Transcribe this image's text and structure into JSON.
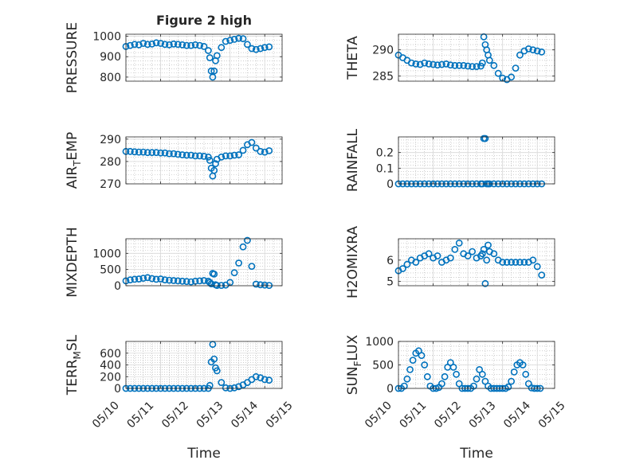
{
  "figure_title": "Figure 2 high",
  "colors": {
    "marker": "#0072BD",
    "axis": "#262626",
    "grid": "#b0b0b0"
  },
  "chart_data": [
    {
      "type": "scatter",
      "ylabel": "PRESSURE",
      "ylim": [
        780,
        1010
      ],
      "yticks": [
        800,
        900,
        1000
      ],
      "ytick_labels": [
        "800",
        "900",
        "1000"
      ],
      "xlim": [
        "2017-05-10",
        "2017-05-14.5"
      ],
      "xticks": [
        "2017-05-10",
        "2017-05-11",
        "2017-05-12",
        "2017-05-13",
        "2017-05-14"
      ],
      "xtick_labels": [],
      "grid": true,
      "x": [
        "2017-05-10T00",
        "2017-05-10T03",
        "2017-05-10T06",
        "2017-05-10T09",
        "2017-05-10T12",
        "2017-05-10T15",
        "2017-05-10T18",
        "2017-05-10T21",
        "2017-05-11T00",
        "2017-05-11T03",
        "2017-05-11T06",
        "2017-05-11T09",
        "2017-05-11T12",
        "2017-05-11T15",
        "2017-05-11T18",
        "2017-05-11T21",
        "2017-05-12T00",
        "2017-05-12T03",
        "2017-05-12T06",
        "2017-05-12T09",
        "2017-05-12T10",
        "2017-05-12T11",
        "2017-05-12T12",
        "2017-05-12T13",
        "2017-05-12T14",
        "2017-05-12T15",
        "2017-05-12T18",
        "2017-05-12T21",
        "2017-05-13T00",
        "2017-05-13T03",
        "2017-05-13T06",
        "2017-05-13T09",
        "2017-05-13T12",
        "2017-05-13T15",
        "2017-05-13T18",
        "2017-05-13T21",
        "2017-05-14T00",
        "2017-05-14T03"
      ],
      "y": [
        950,
        955,
        960,
        958,
        965,
        960,
        962,
        968,
        965,
        960,
        958,
        962,
        960,
        958,
        955,
        955,
        958,
        955,
        950,
        930,
        895,
        830,
        800,
        830,
        880,
        905,
        945,
        975,
        980,
        985,
        990,
        988,
        960,
        940,
        935,
        940,
        945,
        948
      ]
    },
    {
      "type": "scatter",
      "ylabel": "THETA",
      "ylim": [
        284,
        293
      ],
      "yticks": [
        285,
        290
      ],
      "ytick_labels": [
        "285",
        "290"
      ],
      "xlim": [
        "2017-05-10",
        "2017-05-14.5"
      ],
      "xticks": [
        "2017-05-10",
        "2017-05-11",
        "2017-05-12",
        "2017-05-13",
        "2017-05-14"
      ],
      "xtick_labels": [],
      "grid": true,
      "x": [
        "2017-05-10T00",
        "2017-05-10T03",
        "2017-05-10T06",
        "2017-05-10T09",
        "2017-05-10T12",
        "2017-05-10T15",
        "2017-05-10T18",
        "2017-05-10T21",
        "2017-05-11T00",
        "2017-05-11T03",
        "2017-05-11T06",
        "2017-05-11T09",
        "2017-05-11T12",
        "2017-05-11T15",
        "2017-05-11T18",
        "2017-05-11T21",
        "2017-05-12T00",
        "2017-05-12T03",
        "2017-05-12T06",
        "2017-05-12T09",
        "2017-05-12T10",
        "2017-05-12T11",
        "2017-05-12T12",
        "2017-05-12T13",
        "2017-05-12T14",
        "2017-05-12T15",
        "2017-05-12T18",
        "2017-05-12T21",
        "2017-05-13T00",
        "2017-05-13T03",
        "2017-05-13T06",
        "2017-05-13T09",
        "2017-05-13T12",
        "2017-05-13T15",
        "2017-05-13T18",
        "2017-05-13T21",
        "2017-05-14T00",
        "2017-05-14T03"
      ],
      "y": [
        289,
        288.5,
        288,
        287.5,
        287.3,
        287.2,
        287.5,
        287.3,
        287.2,
        287.1,
        287.2,
        287.3,
        287.1,
        287,
        287,
        287,
        286.9,
        286.8,
        286.8,
        286.9,
        287.5,
        292.5,
        291,
        290,
        289,
        288,
        287,
        285.5,
        284.6,
        284.3,
        284.8,
        286.5,
        289,
        289.8,
        290.2,
        290,
        289.8,
        289.6
      ]
    },
    {
      "type": "scatter",
      "ylabel": "AIR_TEMP",
      "ylabel_base": "AIR",
      "ylabel_sub": "T",
      "ylabel_rest": "EMP",
      "ylim": [
        270,
        291
      ],
      "yticks": [
        270,
        280,
        290
      ],
      "ytick_labels": [
        "270",
        "280",
        "290"
      ],
      "xlim": [
        "2017-05-10",
        "2017-05-14.5"
      ],
      "xticks": [
        "2017-05-10",
        "2017-05-11",
        "2017-05-12",
        "2017-05-13",
        "2017-05-14"
      ],
      "xtick_labels": [],
      "grid": true,
      "x": [
        "2017-05-10T00",
        "2017-05-10T03",
        "2017-05-10T06",
        "2017-05-10T09",
        "2017-05-10T12",
        "2017-05-10T15",
        "2017-05-10T18",
        "2017-05-10T21",
        "2017-05-11T00",
        "2017-05-11T03",
        "2017-05-11T06",
        "2017-05-11T09",
        "2017-05-11T12",
        "2017-05-11T15",
        "2017-05-11T18",
        "2017-05-11T21",
        "2017-05-12T00",
        "2017-05-12T03",
        "2017-05-12T06",
        "2017-05-12T09",
        "2017-05-12T10",
        "2017-05-12T11",
        "2017-05-12T12",
        "2017-05-12T13",
        "2017-05-12T14",
        "2017-05-12T15",
        "2017-05-12T18",
        "2017-05-12T21",
        "2017-05-13T00",
        "2017-05-13T03",
        "2017-05-13T06",
        "2017-05-13T09",
        "2017-05-13T12",
        "2017-05-13T15",
        "2017-05-13T18",
        "2017-05-13T21",
        "2017-05-14T00",
        "2017-05-14T03"
      ],
      "y": [
        284.5,
        284.5,
        284.3,
        284.2,
        284.2,
        284,
        284,
        284,
        283.8,
        283.8,
        283.5,
        283.5,
        283.2,
        283,
        282.8,
        282.8,
        282.5,
        282.5,
        282.3,
        282,
        280.5,
        277,
        273.5,
        276,
        279,
        281,
        282,
        282.5,
        282.5,
        282.8,
        283,
        285,
        287.5,
        288.5,
        286,
        284.5,
        284.2,
        284.8
      ]
    },
    {
      "type": "scatter",
      "ylabel": "RAINFALL",
      "ylim": [
        0,
        0.3
      ],
      "yticks": [
        0,
        0.1,
        0.2
      ],
      "ytick_labels": [
        "0",
        "0.1",
        "0.2"
      ],
      "xlim": [
        "2017-05-10",
        "2017-05-14.5"
      ],
      "xticks": [
        "2017-05-10",
        "2017-05-11",
        "2017-05-12",
        "2017-05-13",
        "2017-05-14"
      ],
      "xtick_labels": [],
      "grid": true,
      "x": [
        "2017-05-10T00",
        "2017-05-10T03",
        "2017-05-10T06",
        "2017-05-10T09",
        "2017-05-10T12",
        "2017-05-10T15",
        "2017-05-10T18",
        "2017-05-10T21",
        "2017-05-11T00",
        "2017-05-11T03",
        "2017-05-11T06",
        "2017-05-11T09",
        "2017-05-11T12",
        "2017-05-11T15",
        "2017-05-11T18",
        "2017-05-11T21",
        "2017-05-12T00",
        "2017-05-12T03",
        "2017-05-12T06",
        "2017-05-12T09",
        "2017-05-12T10",
        "2017-05-12T11",
        "2017-05-12T12",
        "2017-05-12T13",
        "2017-05-12T14",
        "2017-05-12T15",
        "2017-05-12T18",
        "2017-05-12T21",
        "2017-05-13T00",
        "2017-05-13T03",
        "2017-05-13T06",
        "2017-05-13T09",
        "2017-05-13T12",
        "2017-05-13T15",
        "2017-05-13T18",
        "2017-05-13T21",
        "2017-05-14T00",
        "2017-05-14T03"
      ],
      "y": [
        0,
        0,
        0,
        0,
        0,
        0,
        0,
        0,
        0,
        0,
        0,
        0,
        0,
        0,
        0,
        0,
        0,
        0,
        0,
        0,
        0,
        0.29,
        0.29,
        0,
        0,
        0,
        0,
        0,
        0,
        0,
        0,
        0,
        0,
        0,
        0,
        0,
        0,
        0
      ]
    },
    {
      "type": "scatter",
      "ylabel": "MIXDEPTH",
      "ylim": [
        0,
        1450
      ],
      "yticks": [
        0,
        500,
        1000
      ],
      "ytick_labels": [
        "0",
        "500",
        "1000"
      ],
      "xlim": [
        "2017-05-10",
        "2017-05-14.5"
      ],
      "xticks": [
        "2017-05-10",
        "2017-05-11",
        "2017-05-12",
        "2017-05-13",
        "2017-05-14"
      ],
      "xtick_labels": [],
      "grid": true,
      "x": [
        "2017-05-10T00",
        "2017-05-10T03",
        "2017-05-10T06",
        "2017-05-10T09",
        "2017-05-10T12",
        "2017-05-10T15",
        "2017-05-10T18",
        "2017-05-10T21",
        "2017-05-11T00",
        "2017-05-11T03",
        "2017-05-11T06",
        "2017-05-11T09",
        "2017-05-11T12",
        "2017-05-11T15",
        "2017-05-11T18",
        "2017-05-11T21",
        "2017-05-12T00",
        "2017-05-12T03",
        "2017-05-12T06",
        "2017-05-12T09",
        "2017-05-12T10",
        "2017-05-12T11",
        "2017-05-12T12",
        "2017-05-12T13",
        "2017-05-12T14",
        "2017-05-12T15",
        "2017-05-12T18",
        "2017-05-12T21",
        "2017-05-13T00",
        "2017-05-13T03",
        "2017-05-13T06",
        "2017-05-13T09",
        "2017-05-13T12",
        "2017-05-13T15",
        "2017-05-13T18",
        "2017-05-13T21",
        "2017-05-14T00",
        "2017-05-14T03"
      ],
      "y": [
        150,
        180,
        200,
        210,
        230,
        250,
        220,
        200,
        210,
        180,
        170,
        160,
        150,
        140,
        130,
        120,
        140,
        150,
        160,
        140,
        100,
        60,
        380,
        360,
        30,
        10,
        10,
        20,
        100,
        400,
        700,
        1200,
        1400,
        600,
        50,
        30,
        20,
        10
      ]
    },
    {
      "type": "scatter",
      "ylabel": "H2OMIXRA",
      "ylim": [
        4.8,
        7
      ],
      "yticks": [
        5,
        6
      ],
      "ytick_labels": [
        "5",
        "6"
      ],
      "xlim": [
        "2017-05-10",
        "2017-05-14.5"
      ],
      "xticks": [
        "2017-05-10",
        "2017-05-11",
        "2017-05-12",
        "2017-05-13",
        "2017-05-14"
      ],
      "xtick_labels": [],
      "grid": true,
      "x": [
        "2017-05-10T00",
        "2017-05-10T03",
        "2017-05-10T06",
        "2017-05-10T09",
        "2017-05-10T12",
        "2017-05-10T15",
        "2017-05-10T18",
        "2017-05-10T21",
        "2017-05-11T00",
        "2017-05-11T03",
        "2017-05-11T06",
        "2017-05-11T09",
        "2017-05-11T12",
        "2017-05-11T15",
        "2017-05-11T18",
        "2017-05-11T21",
        "2017-05-12T00",
        "2017-05-12T03",
        "2017-05-12T06",
        "2017-05-12T09",
        "2017-05-12T10",
        "2017-05-12T11",
        "2017-05-12T12",
        "2017-05-12T13",
        "2017-05-12T14",
        "2017-05-12T15",
        "2017-05-12T18",
        "2017-05-12T21",
        "2017-05-13T00",
        "2017-05-13T03",
        "2017-05-13T06",
        "2017-05-13T09",
        "2017-05-13T12",
        "2017-05-13T15",
        "2017-05-13T18",
        "2017-05-13T21",
        "2017-05-14T00",
        "2017-05-14T03"
      ],
      "y": [
        5.5,
        5.6,
        5.8,
        6,
        5.9,
        6.1,
        6.2,
        6.3,
        6.1,
        6.2,
        5.9,
        6,
        6.1,
        6.5,
        6.8,
        6.3,
        6.2,
        6.4,
        6.1,
        6.2,
        6.3,
        6.5,
        4.9,
        6,
        6.7,
        6.4,
        6.3,
        6,
        5.9,
        5.9,
        5.9,
        5.9,
        5.9,
        5.9,
        5.9,
        6,
        5.7,
        5.3
      ]
    },
    {
      "type": "scatter",
      "ylabel": "TERR_MSL",
      "ylabel_base": "TERR",
      "ylabel_sub": "M",
      "ylabel_rest": "SL",
      "ylim": [
        0,
        800
      ],
      "yticks": [
        0,
        200,
        400,
        600
      ],
      "ytick_labels": [
        "0",
        "200",
        "400",
        "600"
      ],
      "xlim": [
        "2017-05-10",
        "2017-05-14.5"
      ],
      "xticks": [
        "2017-05-10",
        "2017-05-11",
        "2017-05-12",
        "2017-05-13",
        "2017-05-14"
      ],
      "xtick_labels": [
        "05/10",
        "05/11",
        "05/12",
        "05/13",
        "05/14",
        "05/15"
      ],
      "xlabel": "Time",
      "grid": true,
      "x": [
        "2017-05-10T00",
        "2017-05-10T03",
        "2017-05-10T06",
        "2017-05-10T09",
        "2017-05-10T12",
        "2017-05-10T15",
        "2017-05-10T18",
        "2017-05-10T21",
        "2017-05-11T00",
        "2017-05-11T03",
        "2017-05-11T06",
        "2017-05-11T09",
        "2017-05-11T12",
        "2017-05-11T15",
        "2017-05-11T18",
        "2017-05-11T21",
        "2017-05-12T00",
        "2017-05-12T03",
        "2017-05-12T06",
        "2017-05-12T09",
        "2017-05-12T10",
        "2017-05-12T11",
        "2017-05-12T12",
        "2017-05-12T13",
        "2017-05-12T14",
        "2017-05-12T15",
        "2017-05-12T18",
        "2017-05-12T21",
        "2017-05-13T00",
        "2017-05-13T03",
        "2017-05-13T06",
        "2017-05-13T09",
        "2017-05-13T12",
        "2017-05-13T15",
        "2017-05-13T18",
        "2017-05-13T21",
        "2017-05-14T00",
        "2017-05-14T03"
      ],
      "y": [
        0,
        0,
        0,
        0,
        0,
        0,
        0,
        0,
        0,
        0,
        0,
        0,
        0,
        0,
        0,
        0,
        0,
        0,
        0,
        0,
        50,
        450,
        750,
        500,
        350,
        300,
        100,
        10,
        0,
        10,
        30,
        60,
        100,
        150,
        200,
        180,
        150,
        140
      ]
    },
    {
      "type": "scatter",
      "ylabel": "SUN_FLUX",
      "ylabel_base": "SUN",
      "ylabel_sub": "F",
      "ylabel_rest": "LUX",
      "ylim": [
        0,
        1000
      ],
      "yticks": [
        0,
        500,
        1000
      ],
      "ytick_labels": [
        "0",
        "500",
        "1000"
      ],
      "xlim": [
        "2017-05-10",
        "2017-05-14.5"
      ],
      "xticks": [
        "2017-05-10",
        "2017-05-11",
        "2017-05-12",
        "2017-05-13",
        "2017-05-14"
      ],
      "xtick_labels": [
        "05/10",
        "05/11",
        "05/12",
        "05/13",
        "05/14",
        "05/15"
      ],
      "xlabel": "Time",
      "grid": true,
      "x": [
        "2017-05-10T00",
        "2017-05-10T02",
        "2017-05-10T04",
        "2017-05-10T06",
        "2017-05-10T08",
        "2017-05-10T10",
        "2017-05-10T12",
        "2017-05-10T14",
        "2017-05-10T16",
        "2017-05-10T18",
        "2017-05-10T20",
        "2017-05-10T22",
        "2017-05-11T00",
        "2017-05-11T02",
        "2017-05-11T04",
        "2017-05-11T06",
        "2017-05-11T08",
        "2017-05-11T10",
        "2017-05-11T12",
        "2017-05-11T14",
        "2017-05-11T16",
        "2017-05-11T18",
        "2017-05-11T20",
        "2017-05-11T22",
        "2017-05-12T00",
        "2017-05-12T02",
        "2017-05-12T04",
        "2017-05-12T06",
        "2017-05-12T08",
        "2017-05-12T10",
        "2017-05-12T12",
        "2017-05-12T14",
        "2017-05-12T16",
        "2017-05-12T18",
        "2017-05-12T20",
        "2017-05-12T22",
        "2017-05-13T00",
        "2017-05-13T02",
        "2017-05-13T04",
        "2017-05-13T06",
        "2017-05-13T08",
        "2017-05-13T10",
        "2017-05-13T12",
        "2017-05-13T14",
        "2017-05-13T16",
        "2017-05-13T18",
        "2017-05-13T20",
        "2017-05-13T22",
        "2017-05-14T00",
        "2017-05-14T02"
      ],
      "y": [
        0,
        0,
        50,
        200,
        400,
        600,
        750,
        800,
        700,
        500,
        250,
        50,
        0,
        0,
        20,
        100,
        250,
        450,
        550,
        450,
        300,
        100,
        0,
        0,
        0,
        0,
        50,
        200,
        400,
        300,
        150,
        50,
        0,
        0,
        0,
        0,
        0,
        0,
        30,
        150,
        350,
        500,
        550,
        500,
        300,
        100,
        10,
        0,
        0,
        0
      ]
    }
  ]
}
